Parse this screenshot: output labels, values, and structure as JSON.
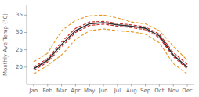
{
  "chart_data": {
    "type": "line",
    "ylabel": "Monthly Ave Temp (°C)",
    "categories": [
      "Jan",
      "Feb",
      "Mar",
      "Apr",
      "May",
      "Jun",
      "Jul",
      "Aug",
      "Sep",
      "Oct",
      "Nov",
      "Dec"
    ],
    "series": [
      {
        "color": "#e89520",
        "line_style": "dashed",
        "values": [
          21.5,
          24.0,
          30.5,
          33.5,
          34.8,
          35.0,
          34.2,
          33.0,
          32.5,
          30.5,
          26.0,
          22.0
        ]
      },
      {
        "color": "#e89520",
        "line_style": "dashed",
        "values": [
          18.0,
          20.5,
          23.5,
          28.0,
          30.5,
          31.0,
          30.5,
          30.2,
          29.5,
          27.0,
          21.0,
          18.0
        ]
      },
      {
        "color": "#cc2222",
        "line_style": "dashed",
        "values": [
          20.0,
          22.5,
          27.2,
          31.2,
          33.0,
          33.2,
          32.6,
          32.2,
          31.6,
          29.5,
          24.2,
          20.8
        ]
      },
      {
        "color": "#cc2222",
        "line_style": "dashed",
        "values": [
          19.0,
          21.5,
          25.8,
          30.0,
          32.0,
          32.4,
          31.8,
          31.4,
          30.8,
          28.5,
          23.0,
          19.5
        ]
      },
      {
        "color": "#333333",
        "line_style": "solid",
        "values": [
          19.5,
          22.0,
          26.5,
          30.5,
          32.5,
          32.8,
          32.2,
          31.8,
          31.2,
          29.0,
          23.5,
          20.0
        ]
      }
    ],
    "ylim": [
      15,
      38
    ],
    "yticks": [
      20,
      25,
      30,
      35
    ],
    "grid": false
  }
}
